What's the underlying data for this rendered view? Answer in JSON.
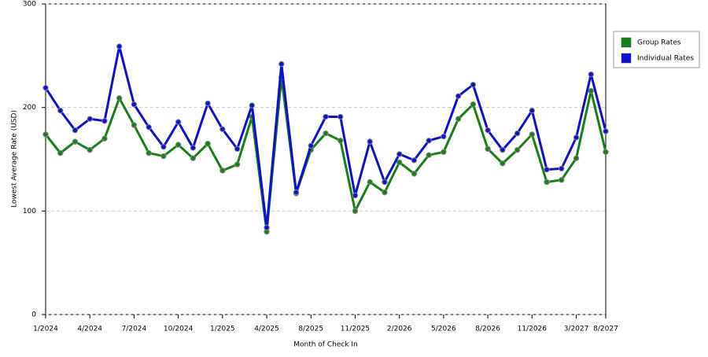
{
  "chart_data": {
    "type": "line",
    "x_label": "Month of Check In",
    "y_label": "Lowest Average Rate (USD)",
    "categories": [
      "1/2024",
      null,
      null,
      "4/2024",
      null,
      null,
      "7/2024",
      null,
      null,
      "10/2024",
      null,
      null,
      "1/2025",
      null,
      null,
      "4/2025",
      null,
      null,
      "8/2025",
      null,
      null,
      "11/2025",
      null,
      null,
      "2/2026",
      null,
      null,
      "5/2026",
      null,
      null,
      "8/2026",
      null,
      null,
      "11/2026",
      null,
      null,
      "3/2027",
      null,
      "8/2027"
    ],
    "series": [
      {
        "name": "Group Rates",
        "color": "#168016",
        "values": [
          174,
          156,
          167,
          159,
          170,
          209,
          183,
          156,
          153,
          164,
          151,
          165,
          139,
          145,
          191,
          80,
          229,
          117,
          159,
          175,
          168,
          100,
          128,
          118,
          147,
          136,
          154,
          157,
          189,
          203,
          160,
          146,
          159,
          174,
          128,
          130,
          151,
          216,
          157
        ]
      },
      {
        "name": "Individual Rates",
        "color": "#0f0fd0",
        "values": [
          219,
          197,
          178,
          189,
          187,
          259,
          203,
          181,
          162,
          186,
          161,
          204,
          179,
          160,
          202,
          84,
          242,
          118,
          163,
          191,
          191,
          115,
          167,
          128,
          155,
          149,
          168,
          172,
          211,
          222,
          178,
          159,
          175,
          197,
          140,
          141,
          171,
          232,
          177
        ]
      }
    ],
    "ylim": [
      0,
      300
    ],
    "yticks": [
      0,
      100,
      200,
      300
    ],
    "grid": true,
    "legend": "right"
  }
}
